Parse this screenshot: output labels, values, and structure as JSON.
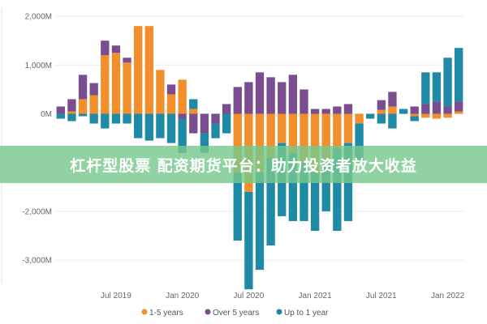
{
  "banner": {
    "text": "杠杆型股票 配资期货平台：助力投资者放大收益"
  },
  "chart_data": {
    "type": "bar",
    "stacked": true,
    "ylim": [
      -3500,
      2000
    ],
    "yticks": [
      {
        "value": 2000,
        "label": "2,000M"
      },
      {
        "value": 1000,
        "label": "1,000M"
      },
      {
        "value": 0,
        "label": "0M"
      },
      {
        "value": -2000,
        "label": "-2,000M"
      },
      {
        "value": -3000,
        "label": "-3,000M"
      }
    ],
    "xticks": [
      {
        "index": 5,
        "label": "Jul 2019"
      },
      {
        "index": 11,
        "label": "Jan 2020"
      },
      {
        "index": 17,
        "label": "Jul 2020"
      },
      {
        "index": 23,
        "label": "Jan 2021"
      },
      {
        "index": 29,
        "label": "Jul 2021"
      },
      {
        "index": 35,
        "label": "Jan 2022"
      }
    ],
    "categories": [
      "1",
      "2",
      "3",
      "4",
      "5",
      "6",
      "7",
      "8",
      "9",
      "10",
      "11",
      "12",
      "13",
      "14",
      "15",
      "16",
      "17",
      "18",
      "19",
      "20",
      "21",
      "22",
      "23",
      "24",
      "25",
      "26",
      "27",
      "28",
      "29",
      "30",
      "31",
      "32",
      "33",
      "34",
      "35",
      "36",
      "37"
    ],
    "series": [
      {
        "name": "1-5 years",
        "color": "#f28e2b",
        "values": [
          0,
          50,
          300,
          380,
          1200,
          1250,
          1050,
          1800,
          1800,
          900,
          400,
          700,
          100,
          0,
          0,
          0,
          -1200,
          -1600,
          -1200,
          -900,
          -600,
          -800,
          -1000,
          -1200,
          -1000,
          -700,
          -600,
          -200,
          0,
          80,
          150,
          0,
          -50,
          -80,
          -100,
          -80,
          50
        ]
      },
      {
        "name": "Over 5 years",
        "color": "#7a4d91",
        "values": [
          150,
          250,
          500,
          250,
          300,
          150,
          100,
          0,
          0,
          0,
          200,
          -100,
          -400,
          -400,
          -200,
          200,
          550,
          650,
          850,
          750,
          650,
          800,
          500,
          100,
          100,
          150,
          200,
          0,
          0,
          200,
          300,
          0,
          150,
          200,
          250,
          150,
          200
        ]
      },
      {
        "name": "Up to 1 year",
        "color": "#1f8aa5",
        "values": [
          -100,
          -150,
          -50,
          -200,
          -300,
          -200,
          -200,
          -500,
          -550,
          -500,
          -600,
          -700,
          200,
          -400,
          -300,
          -400,
          -1400,
          -2000,
          -2000,
          -1800,
          -1500,
          -1400,
          -1200,
          -1200,
          -1000,
          -1700,
          -1600,
          -800,
          -100,
          -200,
          -300,
          100,
          -100,
          650,
          600,
          1000,
          1100
        ]
      }
    ],
    "legend": {
      "position": "bottom"
    },
    "grid": true
  }
}
